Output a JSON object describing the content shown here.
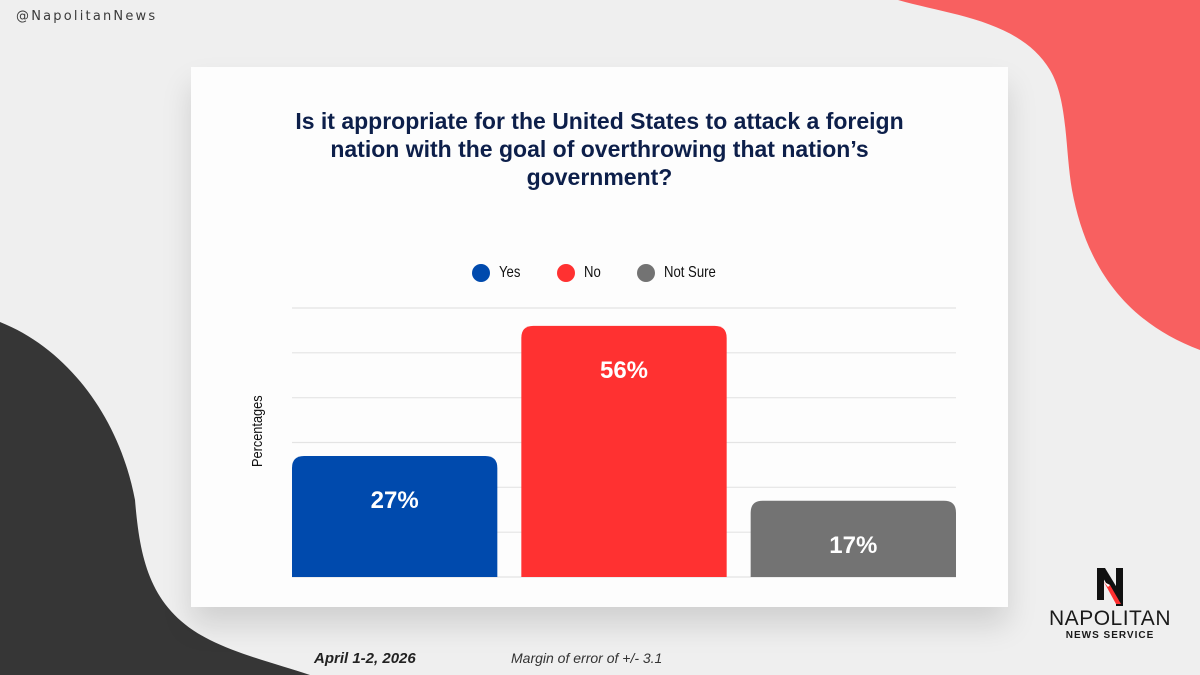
{
  "header": {
    "handle": "@NapolitanNews"
  },
  "colors": {
    "background": "#efefef",
    "coral_blob": "#f86060",
    "dark_blob": "#363636",
    "title": "#0d1f4a",
    "gridline": "#e4e4e4"
  },
  "chart_data": {
    "type": "bar",
    "title": "Is it appropriate for the United States to attack a foreign nation with the goal of overthrowing that nation’s government?",
    "xlabel": "",
    "ylabel": "Percentages",
    "ylim": [
      0,
      60
    ],
    "grid": true,
    "legend_position": "top-center",
    "categories": [
      "Yes",
      "No",
      "Not Sure"
    ],
    "values": [
      27,
      56,
      17
    ],
    "data_labels": [
      "27%",
      "56%",
      "17%"
    ],
    "series_colors": [
      "#004aad",
      "#ff3131",
      "#737373"
    ]
  },
  "footer": {
    "date": "April 1-2, 2026",
    "margin_of_error": "Margin of error of +/- 3.1"
  },
  "logo": {
    "mark": "N",
    "name": "NAPOLITAN",
    "subtitle": "NEWS SERVICE"
  }
}
